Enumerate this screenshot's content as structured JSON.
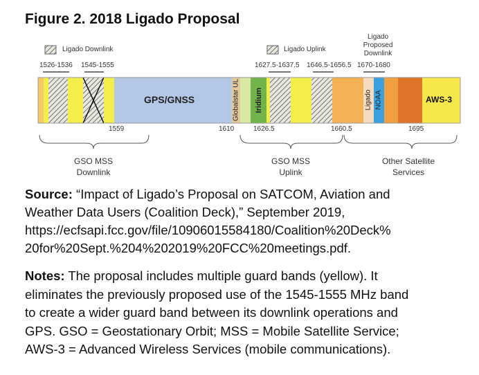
{
  "title": "Figure 2. 2018 Ligado Proposal",
  "diagram": {
    "legend": [
      "Ligado Downlink",
      "Ligado Uplink",
      "Ligado Proposed Downlink"
    ],
    "bands": [
      "GPS/GNSS",
      "Globalstar UL",
      "Iridium",
      "Ligado",
      "NOAA",
      "AWS-3"
    ],
    "ranges": [
      "1526-1536",
      "1545-1555",
      "1627.5-1637.5",
      "1646.5-1656.5",
      "1670-1680"
    ],
    "frequencies": [
      1559,
      1610,
      1626.5,
      1660.5,
      1695
    ],
    "groups": [
      "GSO MSS Downlink",
      "GSO MSS Uplink",
      "Other Satellite Services"
    ]
  },
  "source": {
    "label": "Source:",
    "lines": [
      "“Impact of Ligado’s Proposal on SATCOM, Aviation and",
      "Weather Data Users (Coalition Deck),” September 2019,",
      "https://ecfsapi.fcc.gov/file/10906015584180/Coalition%20Deck%",
      "20for%20Sept.%204%202019%20FCC%20meetings.pdf."
    ]
  },
  "notes": {
    "label": "Notes:",
    "lines": [
      "The proposal includes multiple guard bands (yellow). It",
      "eliminates the previously proposed use of the 1545-1555 MHz band",
      "to create a wider guard band between its downlink operations and",
      "GPS. GSO = Geostationary Orbit; MSS = Mobile Satellite Service;",
      "AWS-3 = Advanced Wireless Services (mobile communications)."
    ]
  }
}
